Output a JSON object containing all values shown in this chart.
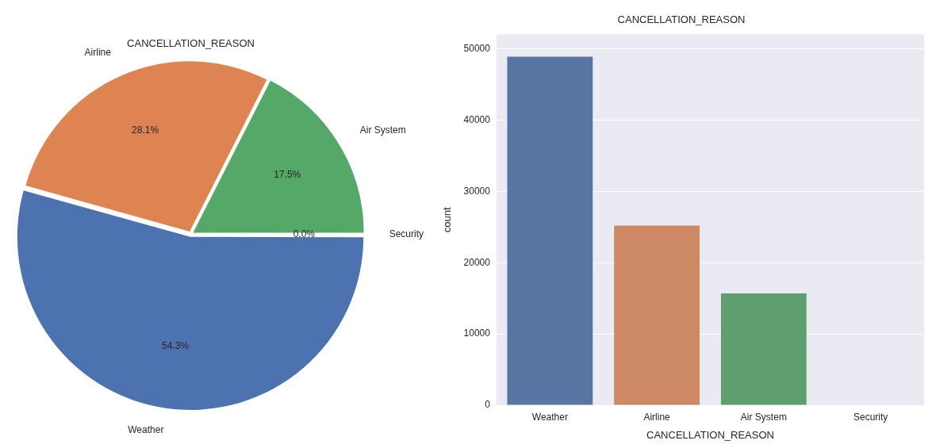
{
  "chart_data": [
    {
      "type": "pie",
      "title": "CANCELLATION_REASON",
      "categories": [
        "Weather",
        "Airline",
        "Air System",
        "Security"
      ],
      "values": [
        54.3,
        28.1,
        17.5,
        0.0
      ],
      "colors": [
        "#4c72b0",
        "#dd8452",
        "#55a868",
        "#c44e52"
      ],
      "value_labels": [
        "54.3%",
        "28.1%",
        "17.5%",
        "0.0%"
      ]
    },
    {
      "type": "bar",
      "title": "CANCELLATION_REASON",
      "xlabel": "CANCELLATION_REASON",
      "ylabel": "count",
      "categories": [
        "Weather",
        "Airline",
        "Air System",
        "Security"
      ],
      "values": [
        48900,
        25200,
        15700,
        0
      ],
      "colors": [
        "#5975a4",
        "#cc8963",
        "#5f9e6e",
        "#b55d60"
      ],
      "ylim": [
        0,
        52000
      ],
      "yticks": [
        0,
        10000,
        20000,
        30000,
        40000,
        50000
      ],
      "grid": "y"
    }
  ]
}
